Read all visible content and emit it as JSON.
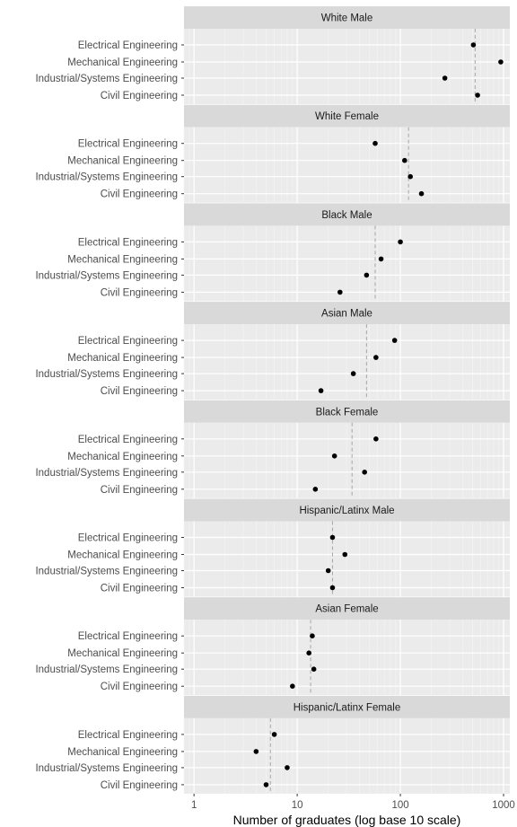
{
  "chart_data": {
    "type": "scatter",
    "xlabel": "Number of graduates (log base 10 scale)",
    "xscale": "log10",
    "xlim": [
      0.8,
      1150
    ],
    "x_ticks": [
      1,
      10,
      100,
      1000
    ],
    "x_tick_labels": [
      "1",
      "10",
      "100",
      "1000"
    ],
    "categories": [
      "Electrical Engineering",
      "Mechanical Engineering",
      "Industrial/Systems Engineering",
      "Civil Engineering"
    ],
    "grid": true,
    "reference_line": "dashed vertical line per panel",
    "panels": [
      {
        "name": "White Male",
        "values": [
          510,
          940,
          270,
          560
        ],
        "ref": 530
      },
      {
        "name": "White Female",
        "values": [
          57,
          110,
          125,
          160
        ],
        "ref": 120
      },
      {
        "name": "Black Male",
        "values": [
          100,
          65,
          47,
          26
        ],
        "ref": 57
      },
      {
        "name": "Asian Male",
        "values": [
          88,
          58,
          35,
          17
        ],
        "ref": 47
      },
      {
        "name": "Black Female",
        "values": [
          58,
          23,
          45,
          15
        ],
        "ref": 34
      },
      {
        "name": "Hispanic/Latinx Male",
        "values": [
          22,
          29,
          20,
          22
        ],
        "ref": 22
      },
      {
        "name": "Asian Female",
        "values": [
          14,
          13,
          14.5,
          9
        ],
        "ref": 13.5
      },
      {
        "name": "Hispanic/Latinx Female",
        "values": [
          6,
          4,
          8,
          5
        ],
        "ref": 5.5
      }
    ]
  },
  "colors": {
    "panel_bg": "#ebebeb",
    "strip_bg": "#d9d9d9",
    "grid_major": "#ffffff",
    "grid_minor": "#f5f5f5",
    "point": "#000000",
    "ref_line": "#a6a6a6"
  }
}
